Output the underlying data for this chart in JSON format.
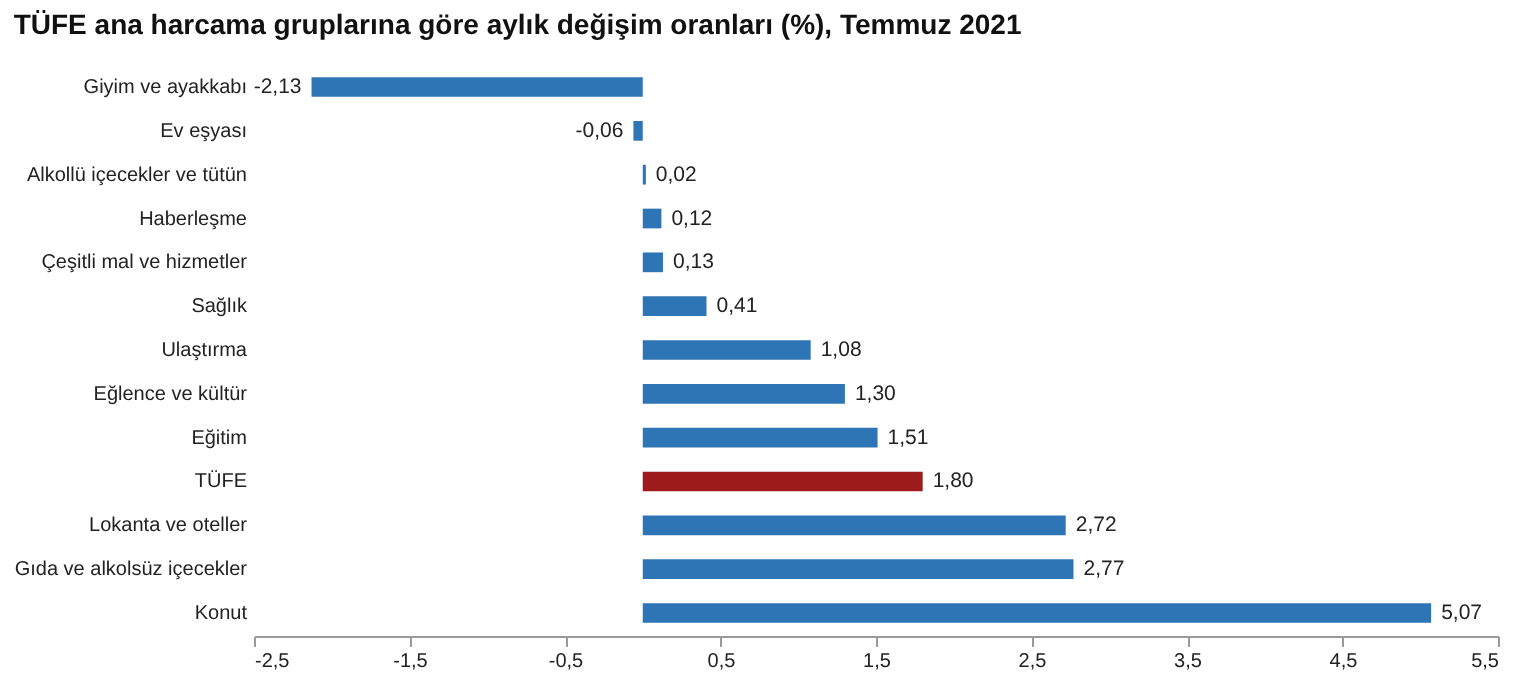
{
  "chart_data": {
    "type": "bar",
    "orientation": "horizontal",
    "title": "TÜFE ana harcama gruplarına göre aylık değişim oranları (%), Temmuz 2021",
    "categories": [
      "Giyim ve ayakkabı",
      "Ev eşyası",
      "Alkollü içecekler ve tütün",
      "Haberleşme",
      "Çeşitli mal ve hizmetler",
      "Sağlık",
      "Ulaştırma",
      "Eğlence ve kültür",
      "Eğitim",
      "TÜFE",
      "Lokanta ve oteller",
      "Gıda ve alkolsüz içecekler",
      "Konut"
    ],
    "values": [
      -2.13,
      -0.06,
      0.02,
      0.12,
      0.13,
      0.41,
      1.08,
      1.3,
      1.51,
      1.8,
      2.72,
      2.77,
      5.07
    ],
    "value_labels": [
      "-2,13",
      "-0,06",
      "0,02",
      "0,12",
      "0,13",
      "0,41",
      "1,08",
      "1,30",
      "1,51",
      "1,80",
      "2,72",
      "2,77",
      "5,07"
    ],
    "colors": [
      "#2e75b6",
      "#2e75b6",
      "#2e75b6",
      "#2e75b6",
      "#2e75b6",
      "#2e75b6",
      "#2e75b6",
      "#2e75b6",
      "#2e75b6",
      "#9e1b1b",
      "#2e75b6",
      "#2e75b6",
      "#2e75b6"
    ],
    "xlim": [
      -2.5,
      5.5
    ],
    "xticks": [
      {
        "value": -2.5,
        "label": "-2,5"
      },
      {
        "value": -1.5,
        "label": "-1,5"
      },
      {
        "value": -0.5,
        "label": "-0,5"
      },
      {
        "value": 0.5,
        "label": "0,5"
      },
      {
        "value": 1.5,
        "label": "1,5"
      },
      {
        "value": 2.5,
        "label": "2,5"
      },
      {
        "value": 3.5,
        "label": "3,5"
      },
      {
        "value": 4.5,
        "label": "4,5"
      },
      {
        "value": 5.5,
        "label": "5,5"
      }
    ],
    "grid": false
  }
}
